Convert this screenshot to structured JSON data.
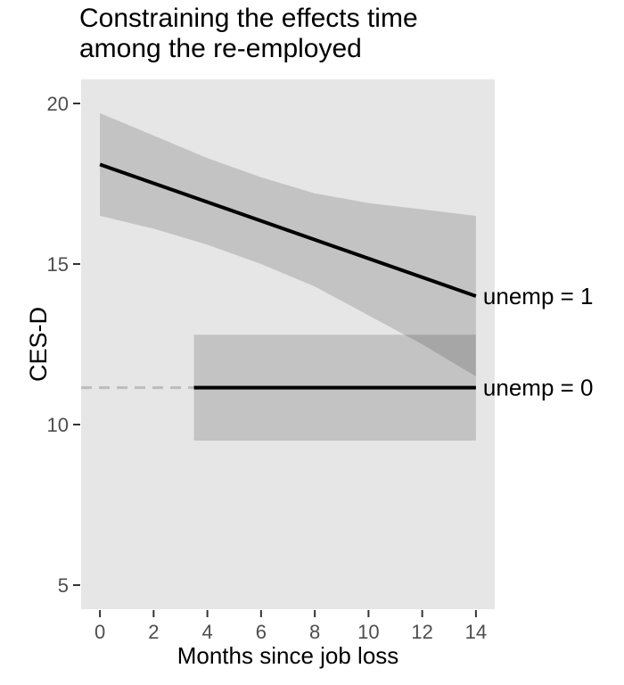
{
  "chart_data": {
    "type": "line",
    "title": "Constraining the effects time\namong the re-employed",
    "xlabel": "Months since job loss",
    "ylabel": "CES-D",
    "xlim": [
      -0.7,
      14.7
    ],
    "ylim": [
      4.25,
      20.75
    ],
    "x_ticks": [
      0,
      2,
      4,
      6,
      8,
      10,
      12,
      14
    ],
    "y_ticks": [
      5,
      10,
      15,
      20
    ],
    "grid": false,
    "legend_position": "right-of-line-labels",
    "series": [
      {
        "name": "unemp = 1",
        "line_style": "solid",
        "x": [
          0,
          14
        ],
        "y": [
          18.1,
          14.0
        ],
        "ribbon": {
          "x": [
            0,
            2,
            4,
            6,
            8,
            10,
            12,
            14
          ],
          "upper": [
            19.7,
            19.0,
            18.3,
            17.7,
            17.2,
            16.9,
            16.7,
            16.5
          ],
          "lower": [
            16.5,
            16.1,
            15.6,
            15.0,
            14.3,
            13.4,
            12.5,
            11.5
          ]
        }
      },
      {
        "name": "unemp = 0",
        "line_style": "solid",
        "x": [
          3.5,
          14
        ],
        "y": [
          11.15,
          11.15
        ],
        "ribbon": {
          "x": [
            3.5,
            14
          ],
          "upper": [
            12.8,
            12.8
          ],
          "lower": [
            9.5,
            9.5
          ]
        },
        "extension": {
          "line_style": "dashed",
          "x": [
            -0.7,
            3.5
          ],
          "y": [
            11.15,
            11.15
          ]
        }
      }
    ],
    "annotations": [
      {
        "text": "unemp = 1",
        "x": 14,
        "y": 14.0
      },
      {
        "text": "unemp = 0",
        "x": 14,
        "y": 11.15
      }
    ],
    "colors": {
      "background": "#FFFFFF",
      "panel_bg": "#E6E6E6",
      "ribbon_fill": "rgba(0,0,0,0.15)",
      "line": "#000000",
      "dashed_line": "#BDBDBD",
      "tick_mark": "#333333",
      "tick_label": "#4D4D4D",
      "text": "#000000"
    }
  }
}
